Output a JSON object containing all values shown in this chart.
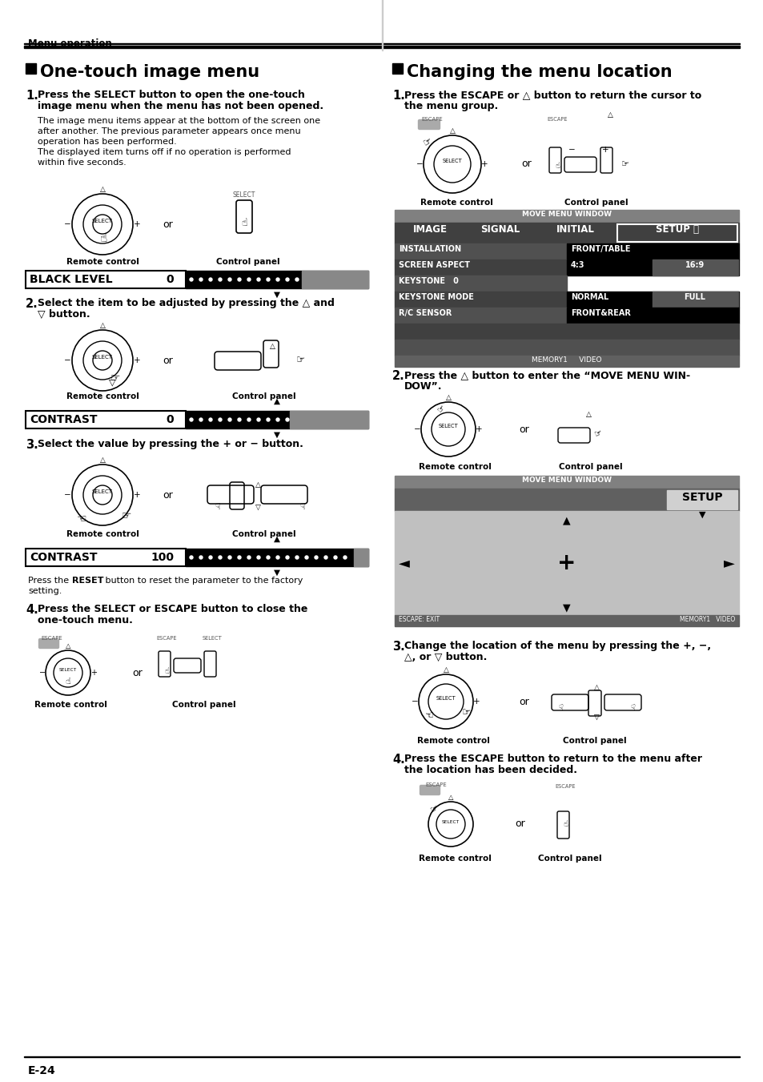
{
  "page_bg": "#ffffff",
  "header_text": "Menu operation",
  "left_title": "One-touch image menu",
  "right_title": "Changing the menu location",
  "left_label_rc1": "Remote control",
  "left_label_cp1": "Control panel",
  "black_level_label": "BLACK LEVEL",
  "black_level_value": "0",
  "left_label_rc2": "Remote control",
  "left_label_cp2": "Control panel",
  "contrast_label1": "CONTRAST",
  "contrast_value1": "0",
  "left_label_rc3": "Remote control",
  "left_label_cp3": "Control panel",
  "contrast_label2": "CONTRAST",
  "contrast_value2": "100",
  "left_label_rc4": "Remote control",
  "left_label_cp4": "Control panel",
  "right_label_rc1": "Remote control",
  "right_label_cp1": "Control panel",
  "menu_table_header": "MOVE MENU WINDOW",
  "menu_cols": [
    "IMAGE",
    "SIGNAL",
    "INITIAL",
    "SETUP"
  ],
  "menu_rows": [
    [
      "INSTALLATION",
      "",
      "FRONT/TABLE",
      ""
    ],
    [
      "SCREEN ASPECT",
      "",
      "4:3",
      "16:9"
    ],
    [
      "KEYSTONE",
      "0",
      "",
      ""
    ],
    [
      "KEYSTONE MODE",
      "",
      "NORMAL",
      "FULL"
    ],
    [
      "R/C SENSOR",
      "",
      "FRONT&REAR",
      ""
    ]
  ],
  "menu_footer": "MEMORY1     VIDEO",
  "right_label_rc2": "Remote control",
  "right_label_cp2": "Control panel",
  "move_menu_header": "MOVE MENU WINDOW",
  "move_menu_setup": "SETUP",
  "move_menu_footer2": "ESCAPE: EXIT          MEMORY1   VIDEO",
  "right_label_rc3": "Remote control",
  "right_label_cp3": "Control panel",
  "right_label_rc4": "Remote control",
  "right_label_cp4": "Control panel",
  "footer_text": "E-24",
  "or_text": "or"
}
